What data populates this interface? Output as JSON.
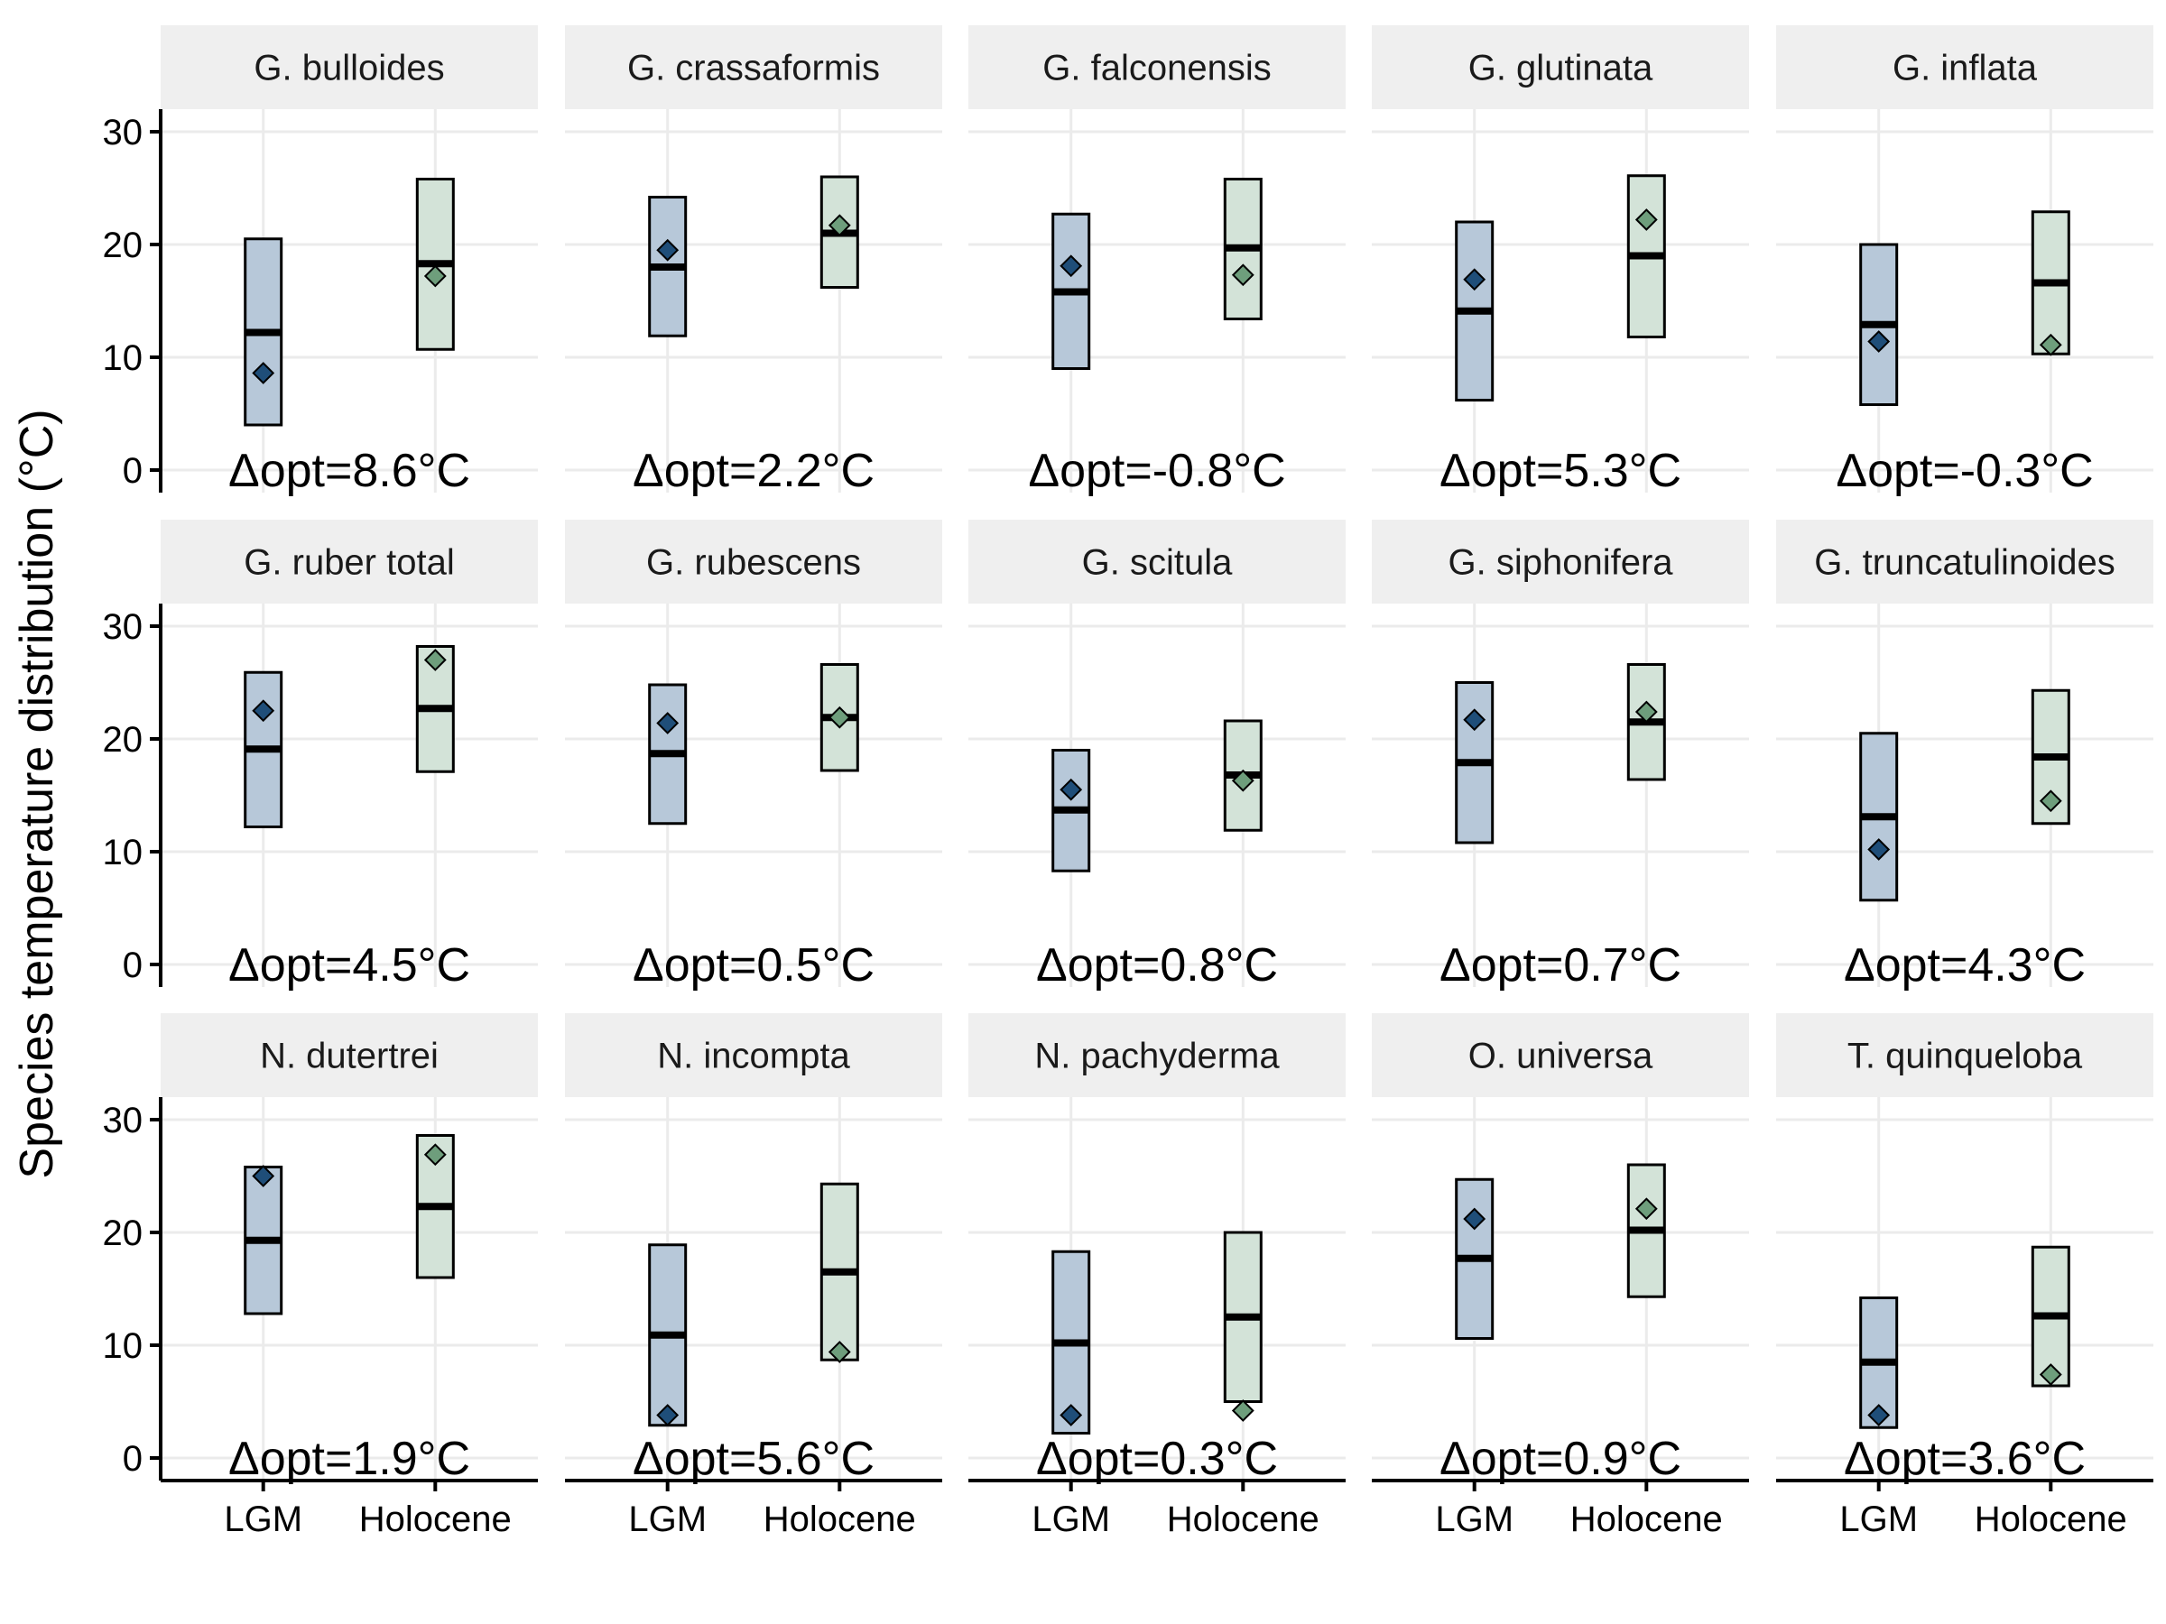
{
  "chart_data": {
    "type": "box",
    "layout": "faceted grid, 3 rows x 5 columns",
    "ylabel": "Species temperature distribution (°C)",
    "ylim": [
      -2,
      32
    ],
    "yticks": [
      0,
      10,
      20,
      30
    ],
    "categories": [
      "LGM",
      "Holocene"
    ],
    "colors": {
      "LGM_fill": "#b7c8d9",
      "LGM_point": "#1f4e79",
      "Holocene_fill": "#d3e3d8",
      "Holocene_point": "#6e9e7c",
      "strip": "#efefef",
      "grid": "#ebebeb"
    },
    "grid": true,
    "panels": [
      {
        "species": "G. bulloides",
        "delta": "Δopt=8.6°C",
        "LGM": {
          "low": 4.0,
          "median": 12.2,
          "high": 20.5,
          "optimum": 8.6
        },
        "Holocene": {
          "low": 10.7,
          "median": 18.3,
          "high": 25.8,
          "optimum": 17.2
        }
      },
      {
        "species": "G. crassaformis",
        "delta": "Δopt=2.2°C",
        "LGM": {
          "low": 11.9,
          "median": 18.0,
          "high": 24.2,
          "optimum": 19.5
        },
        "Holocene": {
          "low": 16.2,
          "median": 21.0,
          "high": 26.0,
          "optimum": 21.7
        }
      },
      {
        "species": "G. falconensis",
        "delta": "Δopt=-0.8°C",
        "LGM": {
          "low": 9.0,
          "median": 15.8,
          "high": 22.7,
          "optimum": 18.1
        },
        "Holocene": {
          "low": 13.4,
          "median": 19.7,
          "high": 25.8,
          "optimum": 17.3
        }
      },
      {
        "species": "G. glutinata",
        "delta": "Δopt=5.3°C",
        "LGM": {
          "low": 6.2,
          "median": 14.1,
          "high": 22.0,
          "optimum": 16.9
        },
        "Holocene": {
          "low": 11.8,
          "median": 19.0,
          "high": 26.1,
          "optimum": 22.2
        }
      },
      {
        "species": "G. inflata",
        "delta": "Δopt=-0.3°C",
        "LGM": {
          "low": 5.8,
          "median": 12.9,
          "high": 20.0,
          "optimum": 11.4
        },
        "Holocene": {
          "low": 10.3,
          "median": 16.6,
          "high": 22.9,
          "optimum": 11.1
        }
      },
      {
        "species": "G. ruber total",
        "delta": "Δopt=4.5°C",
        "LGM": {
          "low": 12.2,
          "median": 19.1,
          "high": 25.9,
          "optimum": 22.5
        },
        "Holocene": {
          "low": 17.1,
          "median": 22.7,
          "high": 28.2,
          "optimum": 27.0
        }
      },
      {
        "species": "G. rubescens",
        "delta": "Δopt=0.5°C",
        "LGM": {
          "low": 12.5,
          "median": 18.7,
          "high": 24.8,
          "optimum": 21.4
        },
        "Holocene": {
          "low": 17.2,
          "median": 21.9,
          "high": 26.6,
          "optimum": 21.9
        }
      },
      {
        "species": "G. scitula",
        "delta": "Δopt=0.8°C",
        "LGM": {
          "low": 8.3,
          "median": 13.7,
          "high": 19.0,
          "optimum": 15.5
        },
        "Holocene": {
          "low": 11.9,
          "median": 16.8,
          "high": 21.6,
          "optimum": 16.3
        }
      },
      {
        "species": "G. siphonifera",
        "delta": "Δopt=0.7°C",
        "LGM": {
          "low": 10.8,
          "median": 17.9,
          "high": 25.0,
          "optimum": 21.7
        },
        "Holocene": {
          "low": 16.4,
          "median": 21.5,
          "high": 26.6,
          "optimum": 22.4
        }
      },
      {
        "species": "G. truncatulinoides",
        "delta": "Δopt=4.3°C",
        "LGM": {
          "low": 5.7,
          "median": 13.1,
          "high": 20.5,
          "optimum": 10.2
        },
        "Holocene": {
          "low": 12.5,
          "median": 18.4,
          "high": 24.3,
          "optimum": 14.5
        }
      },
      {
        "species": "N. dutertrei",
        "delta": "Δopt=1.9°C",
        "LGM": {
          "low": 12.8,
          "median": 19.3,
          "high": 25.8,
          "optimum": 25.0
        },
        "Holocene": {
          "low": 16.0,
          "median": 22.3,
          "high": 28.6,
          "optimum": 26.9
        }
      },
      {
        "species": "N. incompta",
        "delta": "Δopt=5.6°C",
        "LGM": {
          "low": 2.9,
          "median": 10.9,
          "high": 18.9,
          "optimum": 3.8
        },
        "Holocene": {
          "low": 8.7,
          "median": 16.5,
          "high": 24.3,
          "optimum": 9.4
        }
      },
      {
        "species": "N. pachyderma",
        "delta": "Δopt=0.3°C",
        "LGM": {
          "low": 2.2,
          "median": 10.2,
          "high": 18.3,
          "optimum": 3.8
        },
        "Holocene": {
          "low": 5.0,
          "median": 12.5,
          "high": 20.0,
          "optimum": 4.2
        }
      },
      {
        "species": "O. universa",
        "delta": "Δopt=0.9°C",
        "LGM": {
          "low": 10.6,
          "median": 17.7,
          "high": 24.7,
          "optimum": 21.2
        },
        "Holocene": {
          "low": 14.3,
          "median": 20.2,
          "high": 26.0,
          "optimum": 22.1
        }
      },
      {
        "species": "T. quinqueloba",
        "delta": "Δopt=3.6°C",
        "LGM": {
          "low": 2.7,
          "median": 8.5,
          "high": 14.2,
          "optimum": 3.8
        },
        "Holocene": {
          "low": 6.4,
          "median": 12.6,
          "high": 18.7,
          "optimum": 7.4
        }
      }
    ]
  }
}
